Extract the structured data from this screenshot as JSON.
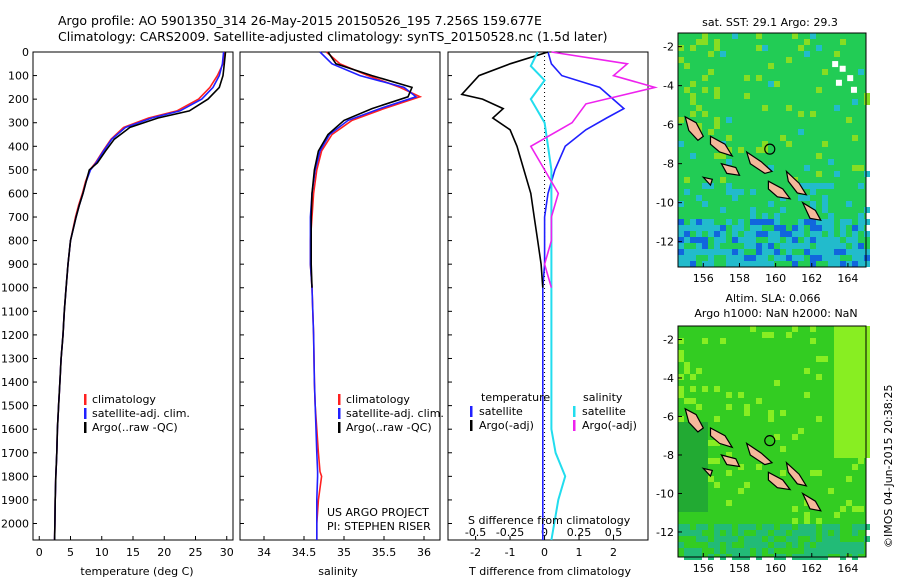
{
  "titles": {
    "line1": "Argo profile: AO 5901350_314 26-May-2015 20150526_195 7.256S 159.677E",
    "line2": "Climatology: CARS2009. Satellite-adjusted climatology: synTS_20150528.nc (1.5d later)"
  },
  "map_sst": {
    "title": "sat. SST: 29.1  Argo: 29.3",
    "x_ticks": [
      "156",
      "158",
      "160",
      "162",
      "164"
    ],
    "y_ticks": [
      "-2",
      "-4",
      "-6",
      "-8",
      "-10",
      "-12"
    ],
    "palette": {
      "base": "#22cc55",
      "warm": "#88dd22",
      "cool": "#22bbcc",
      "cold": "#1166dd",
      "hot": "#ccee22"
    }
  },
  "map_sla": {
    "title1": "Altim. SLA: 0.066",
    "title2": "Argo h1000: NaN h2000: NaN",
    "x_ticks": [
      "156",
      "158",
      "160",
      "162",
      "164"
    ],
    "y_ticks": [
      "-2",
      "-4",
      "-6",
      "-8",
      "-10",
      "-12"
    ],
    "palette": {
      "base": "#33cc22",
      "bright": "#88ee22",
      "dark": "#22aa33",
      "teal": "#22bb77"
    }
  },
  "side_label": "©IMOS 04-Jun-2015 20:38:25",
  "colors": {
    "clim": "#ff2020",
    "sat": "#2020ff",
    "argo": "#000000",
    "sat_s": "#22ddee",
    "argo_s": "#ee22ee",
    "land": "#f4b89a"
  },
  "chart_data": [
    {
      "type": "line",
      "xlabel": "temperature (deg C)",
      "ylabel": "",
      "xlim": [
        -1,
        31
      ],
      "ylim": [
        2070,
        0
      ],
      "x_ticks": [
        "0",
        "5",
        "10",
        "15",
        "20",
        "25",
        "30"
      ],
      "y_ticks": [
        "0",
        "100",
        "200",
        "300",
        "400",
        "500",
        "600",
        "700",
        "800",
        "900",
        "1000",
        "1100",
        "1200",
        "1300",
        "1400",
        "1500",
        "1600",
        "1700",
        "1800",
        "1900",
        "2000"
      ],
      "legend": [
        "climatology",
        "satellite-adj. clim.",
        "Argo(..raw -QC)"
      ],
      "series": [
        {
          "name": "climatology",
          "x": [
            29.6,
            29.4,
            28.5,
            27.3,
            25.5,
            22.0,
            17.5,
            13.5,
            11.5,
            10.2,
            9.0,
            8.1,
            7.4,
            6.9,
            6.3,
            5.8,
            5.0,
            4.6,
            4.3,
            4.0,
            3.8,
            3.5,
            3.3,
            3.1,
            2.9,
            2.8,
            2.65,
            2.55,
            2.5,
            2.45
          ],
          "y": [
            0,
            50,
            100,
            150,
            200,
            250,
            280,
            320,
            370,
            420,
            470,
            500,
            550,
            600,
            650,
            700,
            800,
            900,
            1000,
            1100,
            1200,
            1300,
            1400,
            1500,
            1600,
            1700,
            1800,
            1900,
            2000,
            2070
          ]
        },
        {
          "name": "satellite-adj. clim.",
          "x": [
            29.5,
            29.3,
            28.8,
            27.8,
            26.0,
            22.5,
            18.0,
            13.8,
            11.6,
            10.3,
            9.1,
            8.2,
            7.5,
            7.0,
            6.4,
            5.9,
            5.0,
            4.6,
            4.3,
            4.0,
            3.8,
            3.5,
            3.3,
            3.1,
            2.9,
            2.8,
            2.65,
            2.55,
            2.5,
            2.45
          ],
          "y": [
            0,
            50,
            100,
            150,
            200,
            250,
            280,
            320,
            370,
            420,
            470,
            500,
            550,
            600,
            650,
            700,
            800,
            900,
            1000,
            1100,
            1200,
            1300,
            1400,
            1500,
            1600,
            1700,
            1800,
            1900,
            2000,
            2070
          ]
        },
        {
          "name": "Argo(..raw -QC)",
          "x": [
            29.8,
            29.6,
            29.4,
            28.8,
            27.0,
            24.0,
            19.0,
            14.5,
            12.0,
            10.6,
            9.3,
            8.0,
            7.5,
            7.0,
            6.4,
            5.9,
            5.0,
            4.6,
            4.3,
            4.0,
            3.8,
            3.5,
            3.3,
            3.1,
            2.9,
            2.8,
            2.65,
            2.55,
            2.5,
            2.45
          ],
          "y": [
            0,
            50,
            100,
            150,
            200,
            250,
            280,
            320,
            370,
            420,
            470,
            500,
            550,
            600,
            650,
            700,
            800,
            900,
            1000,
            1100,
            1200,
            1300,
            1400,
            1500,
            1600,
            1700,
            1800,
            1900,
            2000,
            2070
          ]
        }
      ]
    },
    {
      "type": "line",
      "xlabel": "salinity",
      "ylabel": "",
      "xlim": [
        33.7,
        36.2
      ],
      "ylim": [
        2070,
        0
      ],
      "x_ticks": [
        "34",
        "34.5",
        "35",
        "35.5",
        "36"
      ],
      "legend": [
        "climatology",
        "satellite-adj. clim.",
        "Argo(..raw -QC)"
      ],
      "annotation": [
        "US ARGO PROJECT",
        "PI: STEPHEN RISER"
      ],
      "series": [
        {
          "name": "climatology",
          "x": [
            34.78,
            34.95,
            35.3,
            35.7,
            35.95,
            35.5,
            35.1,
            34.85,
            34.72,
            34.66,
            34.62,
            34.6,
            34.58,
            34.58,
            34.6,
            34.62,
            34.63,
            34.64,
            34.66,
            34.68,
            34.7,
            34.72,
            34.68,
            34.66,
            34.66
          ],
          "y": [
            0,
            50,
            100,
            150,
            190,
            240,
            290,
            350,
            420,
            500,
            600,
            700,
            800,
            900,
            1000,
            1200,
            1400,
            1500,
            1600,
            1700,
            1780,
            1800,
            1900,
            2000,
            2070
          ]
        },
        {
          "name": "satellite-adj. clim.",
          "x": [
            34.7,
            34.85,
            35.2,
            35.75,
            35.9,
            35.45,
            35.05,
            34.82,
            34.7,
            34.64,
            34.6,
            34.58,
            34.58,
            34.58,
            34.6,
            34.62,
            34.63,
            34.64,
            34.65,
            34.66,
            34.67,
            34.67,
            34.66,
            34.66,
            34.66
          ],
          "y": [
            0,
            50,
            100,
            150,
            190,
            240,
            290,
            350,
            420,
            500,
            600,
            700,
            800,
            900,
            1000,
            1200,
            1400,
            1500,
            1600,
            1700,
            1780,
            1800,
            1900,
            2000,
            2070
          ]
        },
        {
          "name": "Argo(..raw -QC)",
          "x": [
            34.8,
            34.9,
            35.35,
            35.85,
            35.8,
            35.35,
            35.0,
            34.8,
            34.68,
            34.63,
            34.6,
            34.59,
            34.59,
            34.59,
            34.6
          ],
          "y": [
            0,
            50,
            100,
            150,
            190,
            240,
            290,
            350,
            420,
            500,
            600,
            700,
            800,
            900,
            1000
          ]
        }
      ]
    },
    {
      "type": "line",
      "xlabel": "T difference from climatology",
      "xlabel2": "S difference from climatology",
      "ylabel": "",
      "xlim": [
        -2.8,
        3.0
      ],
      "ylim": [
        2070,
        0
      ],
      "x_ticks": [
        "-2",
        "-1",
        "0",
        "1",
        "2"
      ],
      "x_ticks_top": [
        "-0.5",
        "-0.25",
        "0",
        "0.25",
        "0.5"
      ],
      "legend_titles": [
        "temperature",
        "salinity"
      ],
      "legend": [
        "satellite",
        "Argo(-adj)",
        "satellite",
        "Argo(-adj)"
      ],
      "series": [
        {
          "name": "satellite",
          "kind": "temperature",
          "x": [
            0.1,
            0.2,
            0.5,
            1.6,
            2.3,
            1.8,
            1.2,
            0.6,
            0.3,
            0.1,
            0.0,
            0.0,
            0.0,
            -0.05,
            -0.05,
            -0.05,
            -0.05,
            -0.05,
            -0.05,
            -0.05,
            -0.05
          ],
          "y": [
            0,
            50,
            100,
            150,
            240,
            280,
            330,
            400,
            500,
            600,
            700,
            800,
            900,
            1000,
            1200,
            1400,
            1600,
            1700,
            1800,
            1900,
            2070
          ]
        },
        {
          "name": "Argo(-adj)",
          "kind": "temperature",
          "x": [
            0.1,
            -1.0,
            -1.9,
            -2.4,
            -1.8,
            -1.2,
            -1.5,
            -1.0,
            -0.8,
            -0.6,
            -0.4,
            -0.3,
            -0.2,
            -0.1,
            -0.05
          ],
          "y": [
            0,
            50,
            100,
            180,
            200,
            240,
            280,
            330,
            400,
            500,
            600,
            700,
            800,
            900,
            1000
          ]
        },
        {
          "name": "satellite",
          "kind": "salinity",
          "x": [
            -0.05,
            -0.1,
            0.0,
            -0.1,
            0.0,
            0.05,
            0.05,
            0.05,
            0.05,
            0.05,
            0.08,
            0.15,
            0.1,
            0.05
          ],
          "y": [
            0,
            60,
            120,
            200,
            300,
            500,
            800,
            1100,
            1400,
            1600,
            1700,
            1800,
            1900,
            2070
          ]
        },
        {
          "name": "Argo(-adj)",
          "kind": "salinity",
          "x": [
            0.05,
            0.6,
            0.5,
            0.8,
            0.3,
            0.2,
            -0.1,
            0.0,
            0.1,
            0.05,
            0.05,
            0.0,
            0.05
          ],
          "y": [
            0,
            50,
            100,
            150,
            220,
            300,
            400,
            500,
            600,
            700,
            800,
            900,
            1000
          ]
        }
      ]
    }
  ]
}
